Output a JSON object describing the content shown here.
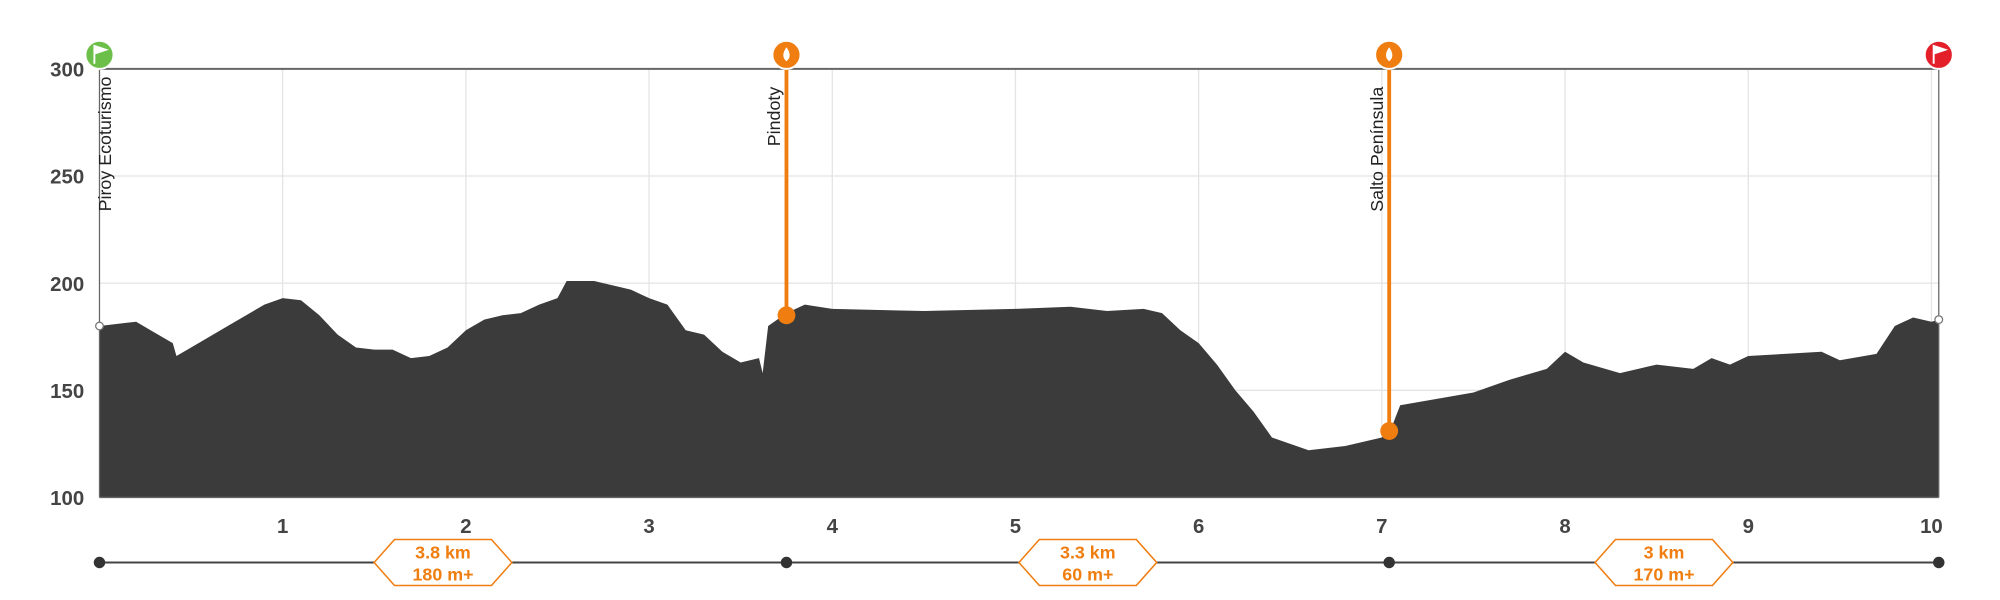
{
  "chart_data": {
    "type": "area",
    "color": "#3b3b3b",
    "x": [
      0,
      0.2,
      0.3,
      0.4,
      0.42,
      0.5,
      0.7,
      0.9,
      1.0,
      1.1,
      1.2,
      1.3,
      1.4,
      1.5,
      1.6,
      1.7,
      1.8,
      1.9,
      2.0,
      2.1,
      2.2,
      2.3,
      2.4,
      2.5,
      2.55,
      2.7,
      2.9,
      3.0,
      3.1,
      3.2,
      3.3,
      3.4,
      3.5,
      3.6,
      3.62,
      3.65,
      3.75,
      3.85,
      4.0,
      4.5,
      5.0,
      5.3,
      5.5,
      5.7,
      5.8,
      5.9,
      6.0,
      6.1,
      6.2,
      6.3,
      6.4,
      6.5,
      6.6,
      6.7,
      6.8,
      6.9,
      7.0,
      7.05,
      7.1,
      7.3,
      7.5,
      7.7,
      7.9,
      8.0,
      8.1,
      8.3,
      8.5,
      8.7,
      8.8,
      8.9,
      9.0,
      9.2,
      9.4,
      9.5,
      9.7,
      9.8,
      9.9,
      10.0,
      10.04
    ],
    "values": [
      180,
      182,
      177,
      172,
      166,
      170,
      180,
      190,
      193,
      192,
      185,
      176,
      170,
      169,
      169,
      165,
      166,
      170,
      178,
      183,
      185,
      186,
      190,
      193,
      201,
      201,
      197,
      193,
      190,
      178,
      176,
      168,
      163,
      165,
      158,
      180,
      186,
      190,
      188,
      187,
      188,
      189,
      187,
      188,
      186,
      178,
      172,
      162,
      150,
      140,
      128,
      125,
      122,
      123,
      124,
      126,
      128,
      132,
      143,
      146,
      149,
      155,
      160,
      168,
      163,
      158,
      162,
      160,
      165,
      162,
      166,
      167,
      168,
      164,
      167,
      180,
      184,
      182,
      183
    ],
    "xlim": [
      0,
      10.04
    ],
    "xticks": [
      1,
      2,
      3,
      4,
      5,
      6,
      7,
      8,
      9,
      10
    ],
    "ylim": [
      100,
      300
    ],
    "yticks": [
      100,
      150,
      200,
      250,
      300
    ],
    "grid": true,
    "waypoints": [
      {
        "label": "Piroy Ecoturismo",
        "x": 0,
        "elevation": 180,
        "color": "#6cc04a"
      },
      {
        "label": "Pindoty",
        "x": 3.75,
        "elevation": 185,
        "color": "#f07d10"
      },
      {
        "label": "Salto Península",
        "x": 7.04,
        "elevation": 131,
        "color": "#f07d10"
      },
      {
        "x": 10.04,
        "elevation": 183,
        "color": "#e3202a"
      }
    ],
    "segments": [
      {
        "distance": "3.8 km",
        "gain": "180 m+"
      },
      {
        "distance": "3.3 km",
        "gain": "60 m+"
      },
      {
        "distance": "3 km",
        "gain": "170 m+"
      }
    ]
  }
}
